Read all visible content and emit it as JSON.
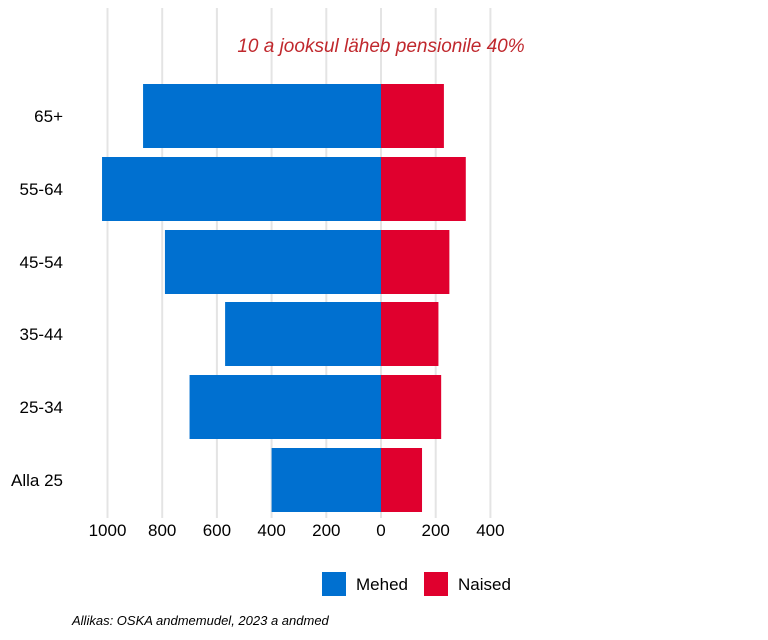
{
  "chart_data": {
    "type": "bar",
    "orientation": "horizontal-pyramid",
    "categories": [
      "Alla 25",
      "25-34",
      "35-44",
      "45-54",
      "55-64",
      "65+"
    ],
    "series": [
      {
        "name": "Mehed",
        "color": "#0070d0",
        "values": [
          400,
          700,
          570,
          790,
          1020,
          870
        ]
      },
      {
        "name": "Naised",
        "color": "#e0002e",
        "values": [
          150,
          220,
          210,
          250,
          310,
          230
        ]
      }
    ],
    "x_tick_labels": [
      "1000",
      "800",
      "600",
      "400",
      "200",
      "0",
      "200",
      "400"
    ],
    "xlim": [
      -1000,
      400
    ],
    "annotation": "10 a jooksul läheb pensionile 40%",
    "annotation_color": "#c0282d",
    "legend_position": "bottom",
    "grid": true,
    "source": "Allikas: OSKA andmemudel, 2023 a andmed"
  }
}
